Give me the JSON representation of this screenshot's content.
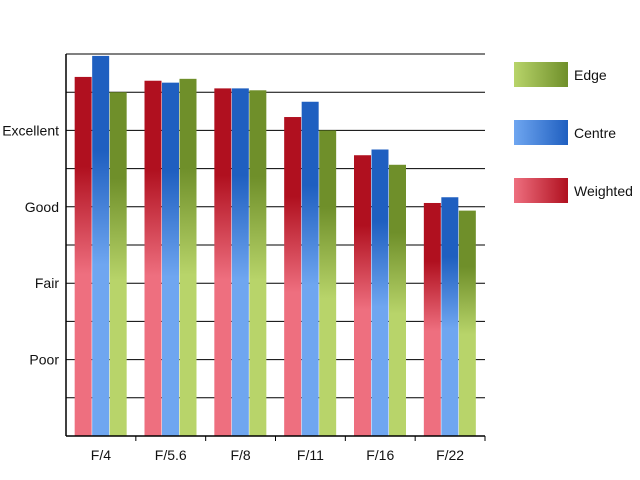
{
  "chart_data": {
    "type": "bar",
    "title": "",
    "xlabel": "",
    "ylabel": "",
    "categories": [
      "F/4",
      "F/5.6",
      "F/8",
      "F/11",
      "F/16",
      "F/22"
    ],
    "y_tick_labels": [
      {
        "value": 2,
        "label": "Poor"
      },
      {
        "value": 4,
        "label": "Fair"
      },
      {
        "value": 6,
        "label": "Good"
      },
      {
        "value": 8,
        "label": "Excellent"
      }
    ],
    "ylim": [
      0,
      10
    ],
    "grid": true,
    "legend_position": "right",
    "series": [
      {
        "name": "Weighted",
        "values": [
          9.4,
          9.3,
          9.1,
          8.35,
          7.35,
          6.1
        ],
        "color_light": "#ee6f7f",
        "color_dark": "#b0101f"
      },
      {
        "name": "Centre",
        "values": [
          9.95,
          9.25,
          9.1,
          8.75,
          7.5,
          6.25
        ],
        "color_light": "#6fa6f0",
        "color_dark": "#1f5fc0"
      },
      {
        "name": "Edge",
        "values": [
          9.0,
          9.35,
          9.05,
          8.0,
          7.1,
          5.9
        ],
        "color_light": "#b8d46a",
        "color_dark": "#6f8f2a"
      }
    ],
    "legend_order": [
      "Edge",
      "Centre",
      "Weighted"
    ]
  }
}
